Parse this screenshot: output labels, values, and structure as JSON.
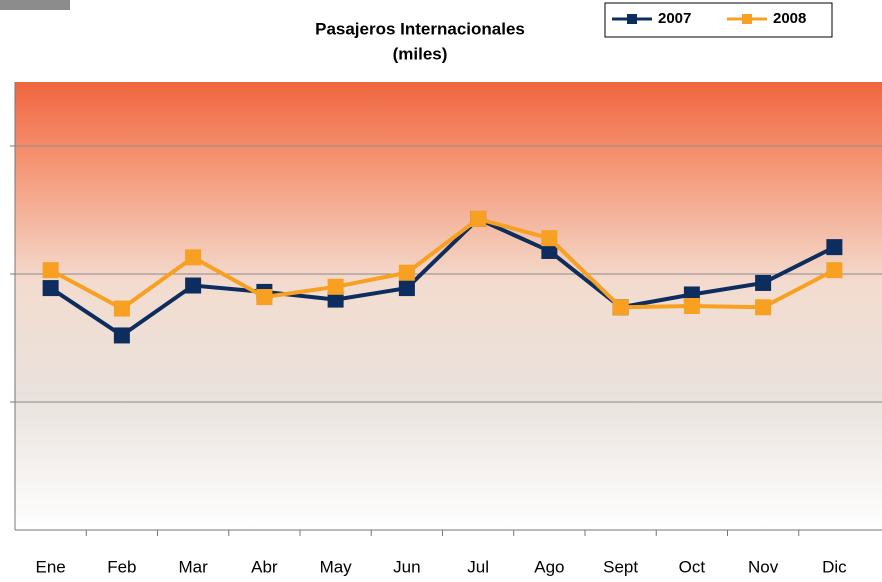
{
  "chart_data": {
    "type": "line",
    "title": "Pasajeros Internacionales",
    "subtitle": "(miles)",
    "categories": [
      "Ene",
      "Feb",
      "Mar",
      "Abr",
      "May",
      "Jun",
      "Jul",
      "Ago",
      "Sept",
      "Oct",
      "Nov",
      "Dic"
    ],
    "series": [
      {
        "name": "2007",
        "color": "#0d2d5e",
        "values": [
          1.89,
          1.52,
          1.91,
          1.86,
          1.8,
          1.89,
          2.43,
          2.18,
          1.74,
          1.84,
          1.93,
          2.21
        ]
      },
      {
        "name": "2008",
        "color": "#f7a021",
        "values": [
          2.03,
          1.73,
          2.13,
          1.82,
          1.9,
          2.01,
          2.43,
          2.28,
          1.74,
          1.75,
          1.74,
          2.03
        ]
      }
    ],
    "ylim": [
      0,
      3.5
    ],
    "yticks": [
      1,
      2,
      3
    ],
    "grid": true,
    "legend": "top-right"
  }
}
